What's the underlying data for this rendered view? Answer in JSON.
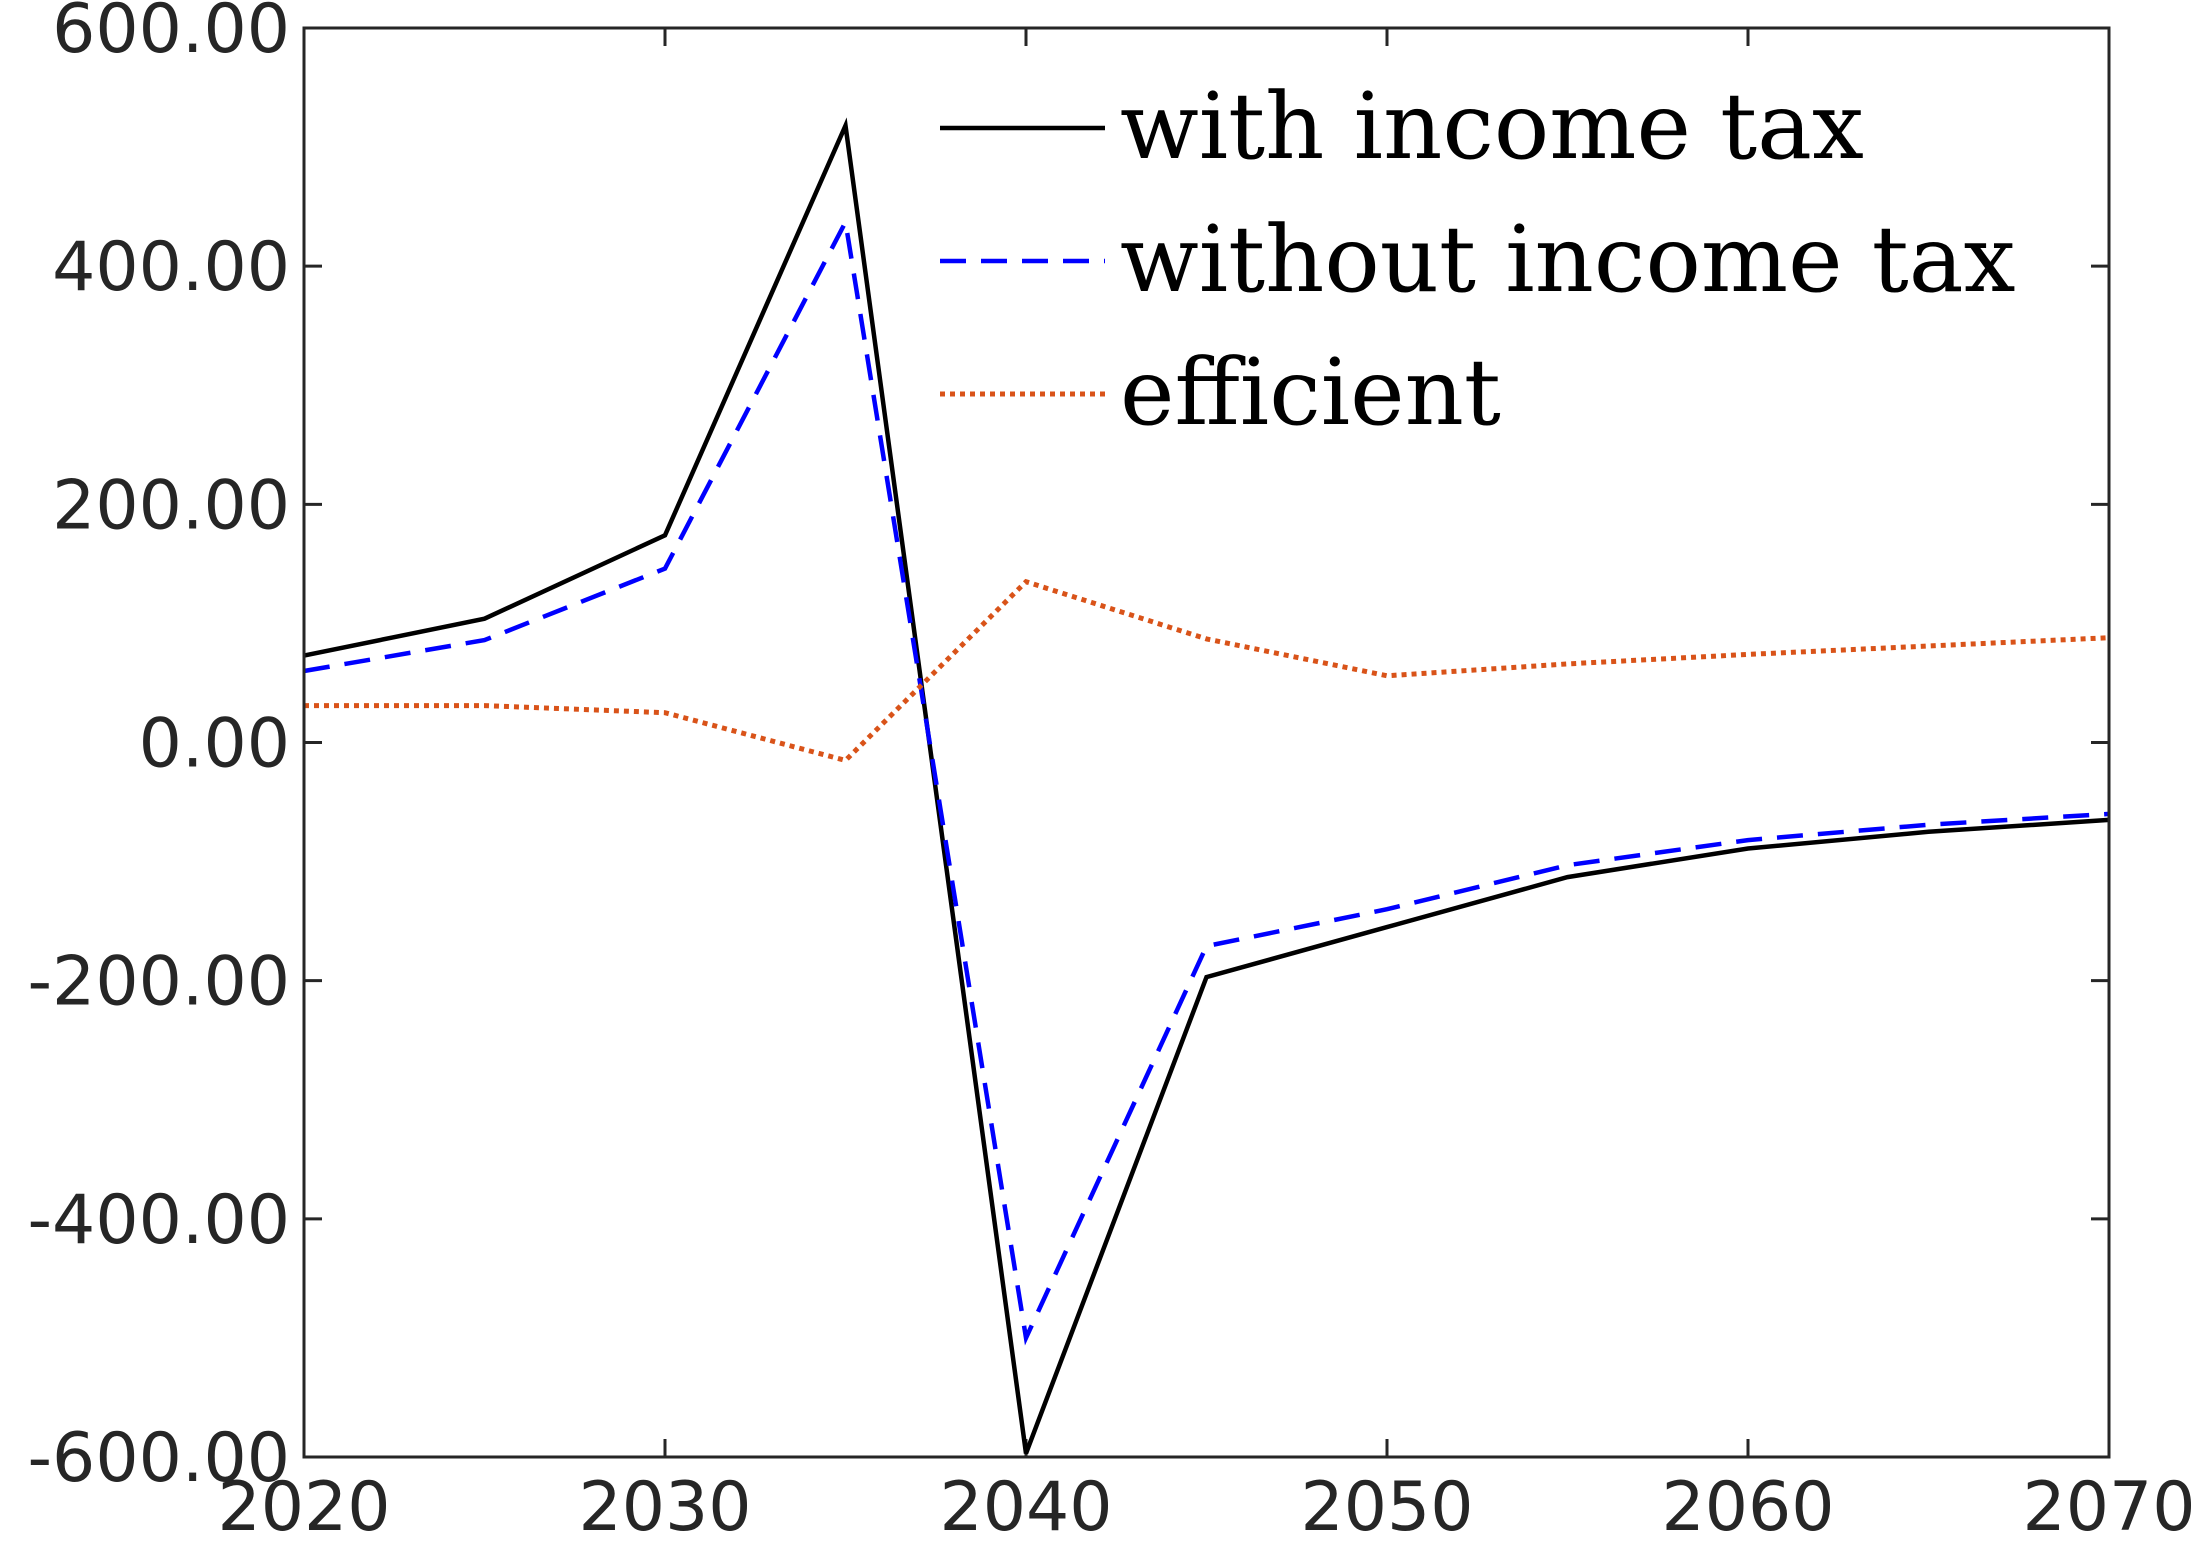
{
  "chart_data": {
    "type": "line",
    "title": "",
    "xlabel": "",
    "ylabel": "",
    "xlim": [
      2020,
      2070
    ],
    "ylim": [
      -600,
      600
    ],
    "x_ticks": [
      2020,
      2030,
      2040,
      2050,
      2060,
      2070
    ],
    "x_tick_labels": [
      "2020",
      "2030",
      "2040",
      "2050",
      "2060",
      "2070"
    ],
    "y_ticks": [
      -600,
      -400,
      -200,
      0,
      200,
      400,
      600
    ],
    "y_tick_labels": [
      "-600.00",
      "-400.00",
      "-200.00",
      "0.00",
      "200.00",
      "400.00",
      "600.00"
    ],
    "grid": false,
    "legend_position": "top-right",
    "x": [
      2020,
      2025,
      2030,
      2035,
      2040,
      2045,
      2050,
      2055,
      2060,
      2065,
      2070
    ],
    "series": [
      {
        "name": "with income tax",
        "color": "#000000",
        "style": "solid",
        "values": [
          73,
          104,
          174,
          518,
          -597,
          -197,
          -155,
          -113,
          -89,
          -75,
          -65
        ]
      },
      {
        "name": "without income tax",
        "color": "#0000ff",
        "style": "dashed",
        "values": [
          60,
          86,
          146,
          437,
          -500,
          -171,
          -140,
          -103,
          -82,
          -69,
          -60
        ]
      },
      {
        "name": "efficient",
        "color": "#d95319",
        "style": "dotted",
        "values": [
          31,
          31,
          25,
          -15,
          135,
          87,
          56,
          66,
          74,
          81,
          88
        ]
      }
    ]
  }
}
